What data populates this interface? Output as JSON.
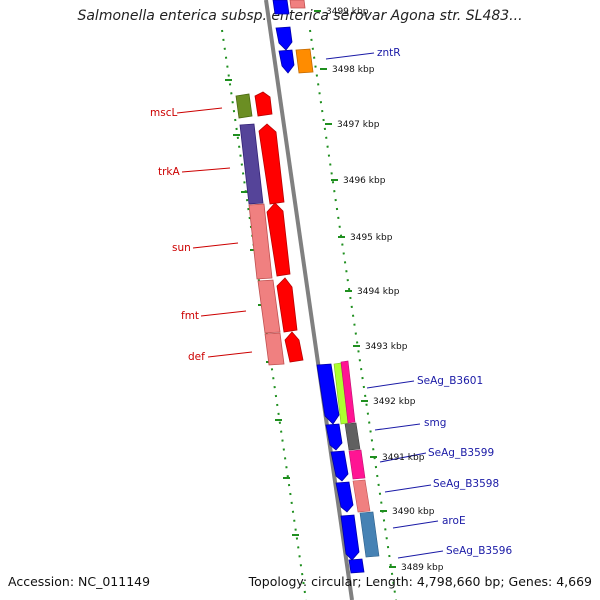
{
  "title": "Salmonella enterica subsp. enterica serovar Agona str. SL483...",
  "footer": {
    "accession": "Accession: NC_011149",
    "topology": "Topology: circular; Length: 4,798,660 bp; Genes: 4,669"
  },
  "ticks": [
    {
      "label": "3499 kbp"
    },
    {
      "label": "3498 kbp"
    },
    {
      "label": "3497 kbp"
    },
    {
      "label": "3496 kbp"
    },
    {
      "label": "3495 kbp"
    },
    {
      "label": "3494 kbp"
    },
    {
      "label": "3493 kbp"
    },
    {
      "label": "3492 kbp"
    },
    {
      "label": "3491 kbp"
    },
    {
      "label": "3490 kbp"
    },
    {
      "label": "3489 kbp"
    }
  ],
  "genes_left": [
    {
      "label": "mscL",
      "color": "#cc0000"
    },
    {
      "label": "trkA",
      "color": "#cc0000"
    },
    {
      "label": "sun",
      "color": "#cc0000"
    },
    {
      "label": "fmt",
      "color": "#cc0000"
    },
    {
      "label": "def",
      "color": "#cc0000"
    }
  ],
  "genes_right": [
    {
      "label": "zntR",
      "color": "#1a1aa6"
    },
    {
      "label": "SeAg_B3601",
      "color": "#1a1aa6"
    },
    {
      "label": "smg",
      "color": "#1a1aa6"
    },
    {
      "label": "SeAg_B3599",
      "color": "#1a1aa6"
    },
    {
      "label": "SeAg_B3598",
      "color": "#1a1aa6"
    },
    {
      "label": "aroE",
      "color": "#1a1aa6"
    },
    {
      "label": "SeAg_B3596",
      "color": "#1a1aa6"
    }
  ],
  "colors": {
    "backbone": "#808080",
    "tick_marks": "#1f8f1f",
    "forward_gene": "#ff0000",
    "reverse_gene": "#0000ff",
    "cds_pink": "#f08080",
    "cds_purple": "#554499",
    "cds_olive": "#6b8e23",
    "cds_orange": "#ff8c00",
    "cds_magenta": "#ff1493",
    "cds_lime": "#adff2f",
    "cds_gray": "#606060",
    "cds_steel": "#4682b4"
  }
}
